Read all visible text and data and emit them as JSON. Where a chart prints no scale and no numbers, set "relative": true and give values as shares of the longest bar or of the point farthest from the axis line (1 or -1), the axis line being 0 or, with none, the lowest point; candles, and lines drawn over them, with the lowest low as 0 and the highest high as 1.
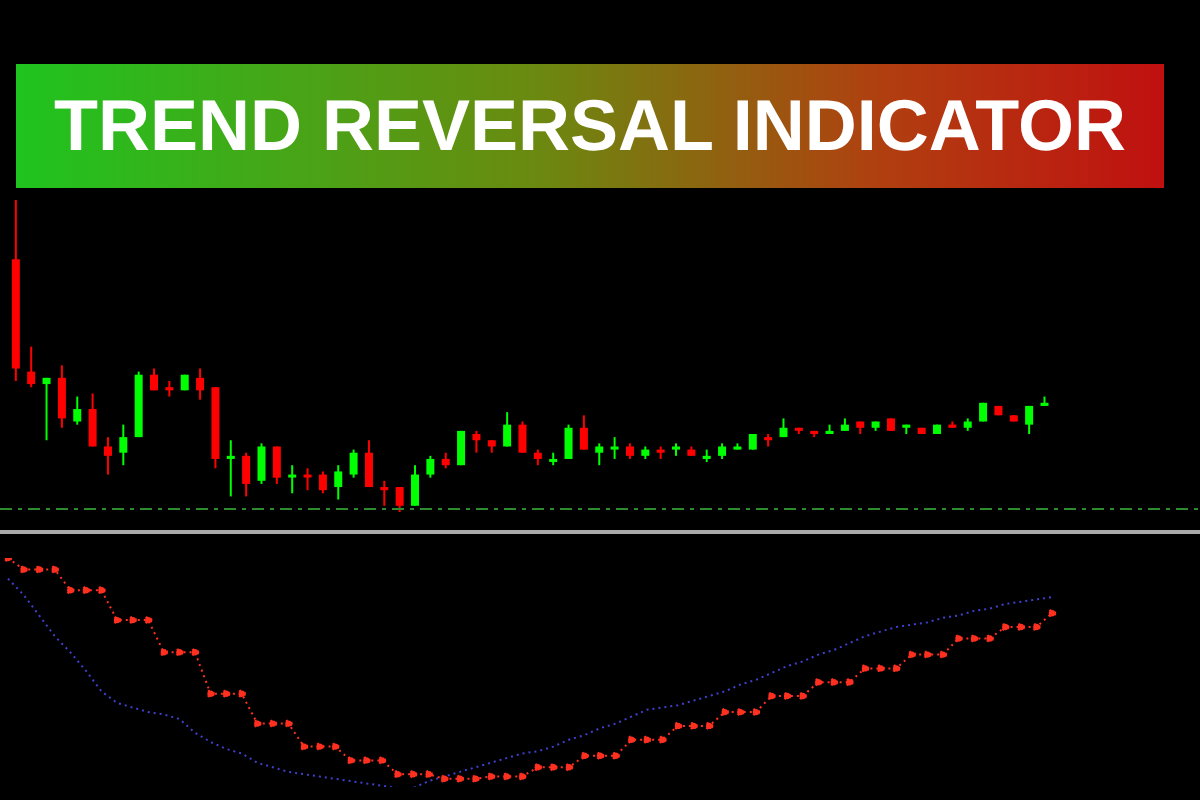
{
  "chart_data": [
    {
      "type": "candlestick",
      "title": "TREND REVERSAL INDICATOR",
      "relative": true,
      "grid": false,
      "legend": false,
      "categories": [
        null,
        null,
        null,
        null,
        null,
        null,
        null,
        null,
        null,
        null,
        null,
        null,
        null,
        null,
        null,
        null,
        null,
        null,
        null,
        null,
        null,
        null,
        null,
        null,
        null,
        null,
        null,
        null,
        null,
        null,
        null,
        null,
        null,
        null,
        null,
        null,
        null,
        null,
        null,
        null,
        null,
        null,
        null,
        null,
        null,
        null,
        null,
        null,
        null,
        null,
        null,
        null,
        null,
        null,
        null,
        null,
        null,
        null,
        null,
        null,
        null,
        null,
        null,
        null,
        null,
        null,
        null,
        null
      ],
      "ohlc": [
        [
          0.81,
          1,
          0.42,
          0.46
        ],
        [
          0.45,
          0.53,
          0.4,
          0.41
        ],
        [
          0.41,
          0.43,
          0.23,
          0.43
        ],
        [
          0.43,
          0.47,
          0.27,
          0.3
        ],
        [
          0.29,
          0.37,
          0.28,
          0.33
        ],
        [
          0.33,
          0.38,
          0.21,
          0.21
        ],
        [
          0.21,
          0.24,
          0.12,
          0.18
        ],
        [
          0.19,
          0.28,
          0.15,
          0.24
        ],
        [
          0.24,
          0.45,
          0.24,
          0.44
        ],
        [
          0.44,
          0.46,
          0.39,
          0.39
        ],
        [
          0.4,
          0.42,
          0.37,
          0.39
        ],
        [
          0.39,
          0.44,
          0.39,
          0.44
        ],
        [
          0.43,
          0.46,
          0.36,
          0.39
        ],
        [
          0.4,
          0.4,
          0.14,
          0.17
        ],
        [
          0.17,
          0.23,
          0.05,
          0.18
        ],
        [
          0.18,
          0.19,
          0.05,
          0.09
        ],
        [
          0.1,
          0.22,
          0.09,
          0.21
        ],
        [
          0.21,
          0.21,
          0.09,
          0.11
        ],
        [
          0.12,
          0.15,
          0.06,
          0.12
        ],
        [
          0.12,
          0.14,
          0.07,
          0.12
        ],
        [
          0.12,
          0.13,
          0.06,
          0.07
        ],
        [
          0.08,
          0.15,
          0.04,
          0.13
        ],
        [
          0.12,
          0.2,
          0.11,
          0.19
        ],
        [
          0.19,
          0.23,
          0.08,
          0.08
        ],
        [
          0.08,
          0.1,
          0.02,
          0.07
        ],
        [
          0.08,
          0.08,
          0,
          0.02
        ],
        [
          0.02,
          0.15,
          0.02,
          0.12
        ],
        [
          0.12,
          0.18,
          0.11,
          0.17
        ],
        [
          0.17,
          0.19,
          0.14,
          0.15
        ],
        [
          0.15,
          0.26,
          0.15,
          0.26
        ],
        [
          0.25,
          0.26,
          0.19,
          0.23
        ],
        [
          0.23,
          0.23,
          0.19,
          0.21
        ],
        [
          0.21,
          0.32,
          0.21,
          0.28
        ],
        [
          0.28,
          0.29,
          0.19,
          0.19
        ],
        [
          0.19,
          0.2,
          0.15,
          0.17
        ],
        [
          0.17,
          0.19,
          0.15,
          0.17
        ],
        [
          0.17,
          0.28,
          0.17,
          0.27
        ],
        [
          0.27,
          0.31,
          0.2,
          0.2
        ],
        [
          0.19,
          0.22,
          0.15,
          0.21
        ],
        [
          0.2,
          0.24,
          0.17,
          0.21
        ],
        [
          0.21,
          0.22,
          0.17,
          0.18
        ],
        [
          0.18,
          0.21,
          0.17,
          0.2
        ],
        [
          0.2,
          0.21,
          0.17,
          0.19
        ],
        [
          0.2,
          0.22,
          0.18,
          0.21
        ],
        [
          0.2,
          0.21,
          0.18,
          0.18
        ],
        [
          0.17,
          0.2,
          0.16,
          0.18
        ],
        [
          0.18,
          0.22,
          0.17,
          0.21
        ],
        [
          0.2,
          0.22,
          0.2,
          0.21
        ],
        [
          0.2,
          0.25,
          0.2,
          0.25
        ],
        [
          0.24,
          0.25,
          0.21,
          0.23
        ],
        [
          0.24,
          0.3,
          0.24,
          0.27
        ],
        [
          0.27,
          0.27,
          0.25,
          0.26
        ],
        [
          0.26,
          0.26,
          0.24,
          0.25
        ],
        [
          0.25,
          0.28,
          0.25,
          0.26
        ],
        [
          0.26,
          0.3,
          0.26,
          0.28
        ],
        [
          0.29,
          0.29,
          0.25,
          0.27
        ],
        [
          0.27,
          0.29,
          0.26,
          0.29
        ],
        [
          0.3,
          0.3,
          0.26,
          0.26
        ],
        [
          0.27,
          0.28,
          0.25,
          0.28
        ],
        [
          0.27,
          0.27,
          0.25,
          0.25
        ],
        [
          0.25,
          0.28,
          0.25,
          0.28
        ],
        [
          0.28,
          0.29,
          0.27,
          0.27
        ],
        [
          0.27,
          0.3,
          0.26,
          0.29
        ],
        [
          0.29,
          0.35,
          0.29,
          0.35
        ],
        [
          0.34,
          0.34,
          0.31,
          0.31
        ],
        [
          0.31,
          0.31,
          0.29,
          0.29
        ],
        [
          0.28,
          0.34,
          0.25,
          0.34
        ],
        [
          0.34,
          0.37,
          0.34,
          0.35
        ]
      ],
      "colors": [
        "#ff0000",
        "#ff0000",
        "#00ff00",
        "#ff0000",
        "#00ff00",
        "#ff0000",
        "#ff0000",
        "#00ff00",
        "#00ff00",
        "#ff0000",
        "#ff0000",
        "#00ff00",
        "#ff0000",
        "#ff0000",
        "#00ff00",
        "#ff0000",
        "#00ff00",
        "#ff0000",
        "#00ff00",
        "#ff0000",
        "#ff0000",
        "#00ff00",
        "#00ff00",
        "#ff0000",
        "#ff0000",
        "#ff0000",
        "#00ff00",
        "#00ff00",
        "#ff0000",
        "#00ff00",
        "#ff0000",
        "#ff0000",
        "#00ff00",
        "#ff0000",
        "#ff0000",
        "#00ff00",
        "#00ff00",
        "#ff0000",
        "#00ff00",
        "#00ff00",
        "#ff0000",
        "#00ff00",
        "#ff0000",
        "#00ff00",
        "#ff0000",
        "#00ff00",
        "#00ff00",
        "#00ff00",
        "#00ff00",
        "#ff0000",
        "#00ff00",
        "#ff0000",
        "#ff0000",
        "#00ff00",
        "#00ff00",
        "#ff0000",
        "#00ff00",
        "#ff0000",
        "#00ff00",
        "#ff0000",
        "#00ff00",
        "#ff0000",
        "#00ff00",
        "#00ff00",
        "#ff0000",
        "#ff0000",
        "#00ff00",
        "#00ff00"
      ],
      "ref_lines": [
        {
          "axis": "y",
          "value": 0.01,
          "color": "#2e8b2e",
          "line_style": "dashed"
        }
      ]
    },
    {
      "type": "line",
      "relative": true,
      "grid": false,
      "legend": false,
      "line_style": "dotted",
      "categories": [
        null,
        null,
        null,
        null,
        null,
        null,
        null,
        null,
        null,
        null,
        null,
        null,
        null,
        null,
        null,
        null,
        null,
        null,
        null,
        null,
        null,
        null,
        null,
        null,
        null,
        null,
        null,
        null,
        null,
        null,
        null,
        null,
        null,
        null,
        null,
        null,
        null,
        null,
        null,
        null,
        null,
        null,
        null,
        null,
        null,
        null,
        null,
        null,
        null,
        null,
        null,
        null,
        null,
        null,
        null,
        null,
        null,
        null,
        null,
        null,
        null,
        null,
        null,
        null,
        null,
        null,
        null,
        null
      ],
      "series": [
        {
          "color": "#4040d0",
          "marker": "none",
          "values": [
            0.91,
            0.84,
            0.75,
            0.66,
            0.59,
            0.51,
            0.42,
            0.37,
            0.35,
            0.33,
            0.32,
            0.3,
            0.24,
            0.2,
            0.17,
            0.15,
            0.11,
            0.09,
            0.07,
            0.06,
            0.05,
            0.04,
            0.03,
            0.02,
            0.01,
            0,
            0,
            0.03,
            0.05,
            0.07,
            0.09,
            0.11,
            0.13,
            0.15,
            0.16,
            0.18,
            0.21,
            0.23,
            0.26,
            0.28,
            0.31,
            0.34,
            0.35,
            0.36,
            0.38,
            0.4,
            0.42,
            0.45,
            0.47,
            0.5,
            0.53,
            0.55,
            0.58,
            0.6,
            0.63,
            0.66,
            0.68,
            0.7,
            0.71,
            0.72,
            0.74,
            0.75,
            0.77,
            0.78,
            0.8,
            0.81,
            0.82,
            0.83
          ]
        },
        {
          "color": "#ff3020",
          "marker": "circle",
          "values": [
            1,
            0.95,
            0.95,
            0.95,
            0.86,
            0.86,
            0.86,
            0.73,
            0.73,
            0.73,
            0.59,
            0.59,
            0.59,
            0.41,
            0.41,
            0.41,
            0.28,
            0.28,
            0.28,
            0.18,
            0.18,
            0.18,
            0.12,
            0.12,
            0.12,
            0.06,
            0.06,
            0.06,
            0.04,
            0.04,
            0.04,
            0.05,
            0.05,
            0.05,
            0.09,
            0.09,
            0.09,
            0.14,
            0.14,
            0.14,
            0.21,
            0.21,
            0.21,
            0.27,
            0.27,
            0.27,
            0.33,
            0.33,
            0.33,
            0.4,
            0.4,
            0.4,
            0.46,
            0.46,
            0.46,
            0.52,
            0.52,
            0.52,
            0.58,
            0.58,
            0.58,
            0.65,
            0.65,
            0.65,
            0.7,
            0.7,
            0.7,
            0.76
          ]
        }
      ]
    }
  ]
}
